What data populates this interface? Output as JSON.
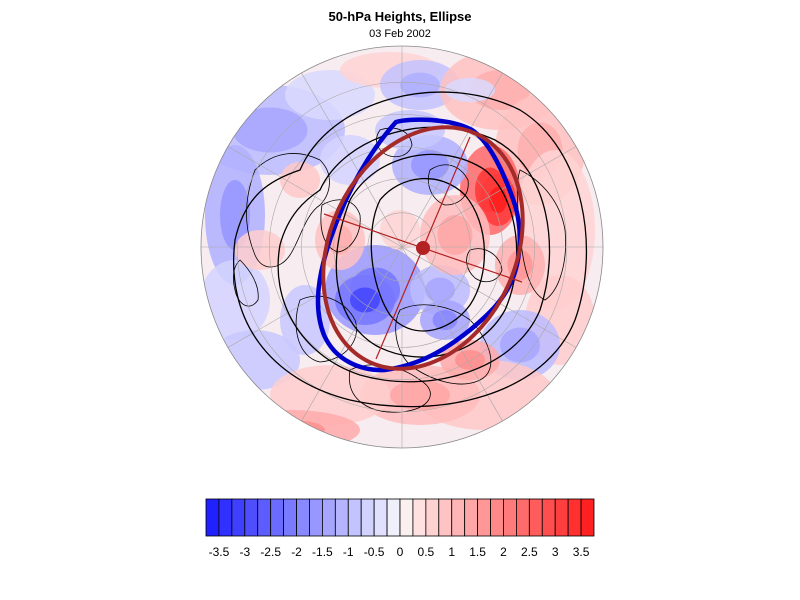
{
  "title": "50-hPa Heights, Ellipse",
  "subtitle": "03 Feb 2002",
  "colors": {
    "negative_max": "#1a1aff",
    "positive_max": "#ff1a1a",
    "height_contour": "#000000",
    "vortex_edge": "#0000cc",
    "fitted_ellipse": "#a52a2a"
  },
  "colorbar": {
    "range": [
      -3.75,
      3.75
    ],
    "step": 0.25,
    "labels": [
      "-3.5",
      "-3",
      "-2.5",
      "-2",
      "-1.5",
      "-1",
      "-0.5",
      "0",
      "0.5",
      "1",
      "1.5",
      "2",
      "2.5",
      "3",
      "3.5"
    ]
  }
}
